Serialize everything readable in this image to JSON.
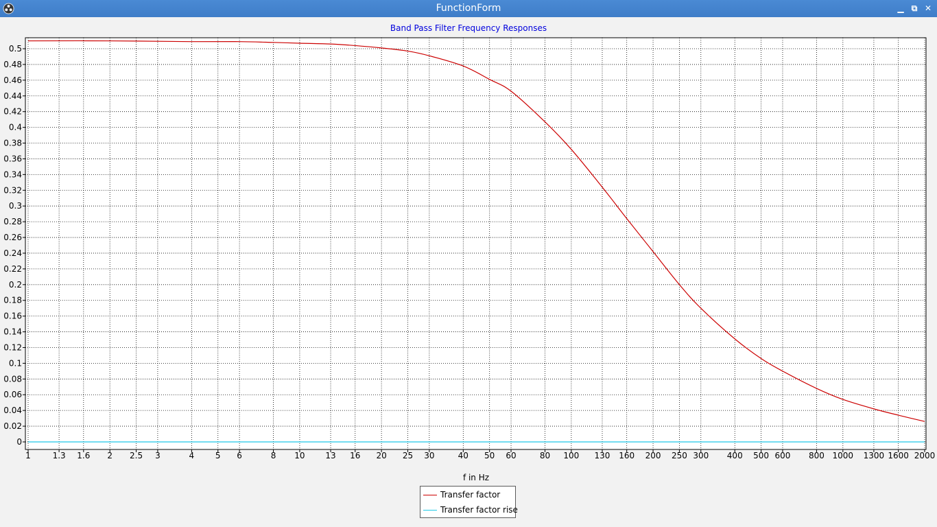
{
  "window": {
    "title": "FunctionForm",
    "icon": "app-logo-icon",
    "buttons": [
      {
        "name": "minimize",
        "glyph": "▁"
      },
      {
        "name": "restore",
        "glyph": "⧉"
      },
      {
        "name": "close",
        "glyph": "✕"
      }
    ]
  },
  "colors": {
    "title": "#0000dd",
    "grid": "#000000",
    "series1": "#cc0000",
    "series2": "#1ec8e6"
  },
  "chart_data": {
    "type": "line",
    "title": "Band Pass Filter Frequency Responses",
    "xlabel": "f in Hz",
    "ylabel": "",
    "x_scale": "log",
    "xlim": [
      1,
      2000
    ],
    "ylim": [
      0,
      0.51
    ],
    "grid": true,
    "legend_position": "bottom-center",
    "x_ticks": [
      1,
      1.3,
      1.6,
      2,
      2.5,
      3,
      4,
      5,
      6,
      8,
      10,
      13,
      16,
      20,
      25,
      30,
      40,
      50,
      60,
      80,
      100,
      130,
      160,
      200,
      250,
      300,
      400,
      500,
      600,
      800,
      1000,
      1300,
      1600,
      2000
    ],
    "x_tick_labels": [
      "1",
      "1.3",
      "1.6",
      "2",
      "2.5",
      "3",
      "4",
      "5",
      "6",
      "8",
      "10",
      "13",
      "16",
      "20",
      "25",
      "30",
      "40",
      "50",
      "60",
      "80",
      "100",
      "130",
      "160",
      "200",
      "250",
      "300",
      "400",
      "500",
      "600",
      "800",
      "1000",
      "1300",
      "1600",
      "2000"
    ],
    "y_ticks": [
      0,
      0.02,
      0.04,
      0.06,
      0.08,
      0.1,
      0.12,
      0.14,
      0.16,
      0.18,
      0.2,
      0.22,
      0.24,
      0.26,
      0.28,
      0.3,
      0.32,
      0.34,
      0.36,
      0.38,
      0.4,
      0.42,
      0.44,
      0.46,
      0.48,
      0.5
    ],
    "y_tick_labels": [
      "0",
      "0.02",
      "0.04",
      "0.06",
      "0.08",
      "0.1",
      "0.12",
      "0.14",
      "0.16",
      "0.18",
      "0.2",
      "0.22",
      "0.24",
      "0.26",
      "0.28",
      "0.3",
      "0.32",
      "0.34",
      "0.36",
      "0.38",
      "0.4",
      "0.42",
      "0.44",
      "0.46",
      "0.48",
      "0.5"
    ],
    "series": [
      {
        "name": "Transfer factor",
        "color": "#cc0000",
        "x": [
          1,
          2,
          4,
          6,
          8,
          10,
          13,
          16,
          20,
          25,
          30,
          40,
          50,
          60,
          80,
          100,
          130,
          160,
          200,
          250,
          300,
          400,
          500,
          600,
          800,
          1000,
          1300,
          1600,
          2000
        ],
        "y": [
          0.51,
          0.51,
          0.509,
          0.509,
          0.508,
          0.507,
          0.506,
          0.504,
          0.501,
          0.497,
          0.491,
          0.478,
          0.461,
          0.446,
          0.407,
          0.372,
          0.324,
          0.284,
          0.242,
          0.2,
          0.17,
          0.131,
          0.106,
          0.09,
          0.068,
          0.054,
          0.042,
          0.034,
          0.026
        ]
      },
      {
        "name": "Transfer factor rise",
        "color": "#1ec8e6",
        "x": [
          1,
          3,
          10,
          30,
          100,
          300,
          1000,
          2000
        ],
        "y": [
          0.0,
          0.0,
          0.0,
          0.0,
          0.0,
          0.0,
          0.0,
          0.0
        ]
      }
    ]
  }
}
